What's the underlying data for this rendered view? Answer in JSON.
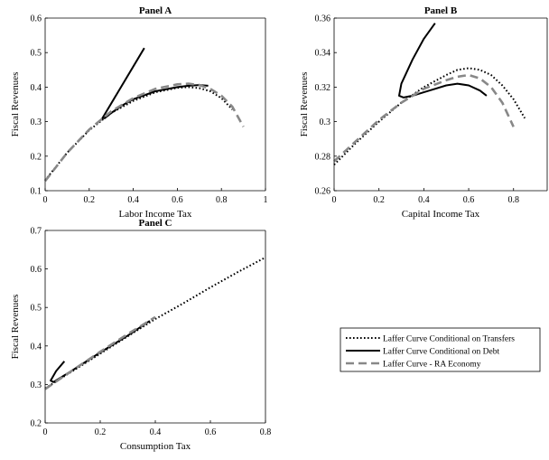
{
  "legend": {
    "items": [
      {
        "label": "Laffer Curve Conditional on Transfers",
        "style": "dotted",
        "color": "#000000"
      },
      {
        "label": "Laffer Curve Conditional on Debt",
        "style": "solid",
        "color": "#000000"
      },
      {
        "label": "Laffer Curve - RA Economy",
        "style": "dashed",
        "color": "#888888"
      }
    ]
  },
  "chart_data": [
    {
      "type": "line",
      "title": "Panel A",
      "xlabel": "Labor Income Tax",
      "ylabel": "Fiscal Revenues",
      "xlim": [
        0,
        1
      ],
      "ylim": [
        0.1,
        0.6
      ],
      "xticks": [
        0,
        0.2,
        0.4,
        0.6,
        0.8,
        1
      ],
      "xtick_labels": [
        "0",
        "0.2",
        "0.4",
        "0.6",
        "0.8",
        "1"
      ],
      "yticks": [
        0.1,
        0.2,
        0.3,
        0.4,
        0.5,
        0.6
      ],
      "ytick_labels": [
        "0.1",
        "0.2",
        "0.3",
        "0.4",
        "0.5",
        "0.6"
      ],
      "series": [
        {
          "name": "Laffer Curve Conditional on Transfers",
          "style": "dotted",
          "color": "#000000",
          "x": [
            0,
            0.1,
            0.2,
            0.3,
            0.4,
            0.5,
            0.6,
            0.65,
            0.7,
            0.75,
            0.8,
            0.85
          ],
          "y": [
            0.13,
            0.21,
            0.275,
            0.325,
            0.36,
            0.385,
            0.398,
            0.4,
            0.397,
            0.388,
            0.368,
            0.335
          ]
        },
        {
          "name": "Laffer Curve Conditional on Debt",
          "style": "solid",
          "color": "#000000",
          "x": [
            0.45,
            0.26,
            0.27,
            0.3,
            0.35,
            0.4,
            0.5,
            0.6,
            0.65,
            0.7,
            0.74
          ],
          "y": [
            0.513,
            0.31,
            0.31,
            0.325,
            0.347,
            0.365,
            0.388,
            0.4,
            0.404,
            0.406,
            0.404
          ]
        },
        {
          "name": "Laffer Curve - RA Economy",
          "style": "dashed",
          "color": "#888888",
          "x": [
            0,
            0.1,
            0.2,
            0.3,
            0.4,
            0.5,
            0.6,
            0.65,
            0.7,
            0.75,
            0.8,
            0.85,
            0.9
          ],
          "y": [
            0.128,
            0.21,
            0.277,
            0.33,
            0.368,
            0.395,
            0.408,
            0.41,
            0.406,
            0.395,
            0.375,
            0.343,
            0.285
          ]
        }
      ]
    },
    {
      "type": "line",
      "title": "Panel B",
      "xlabel": "Capital Income Tax",
      "ylabel": "Fiscal Revenues",
      "xlim": [
        0,
        0.95
      ],
      "ylim": [
        0.26,
        0.36
      ],
      "xticks": [
        0,
        0.2,
        0.4,
        0.6,
        0.8
      ],
      "xtick_labels": [
        "0",
        "0.2",
        "0.4",
        "0.6",
        "0.8"
      ],
      "yticks": [
        0.26,
        0.28,
        0.3,
        0.32,
        0.34,
        0.36
      ],
      "ytick_labels": [
        "0.26",
        "0.28",
        "0.3",
        "0.32",
        "0.34",
        "0.36"
      ],
      "series": [
        {
          "name": "Laffer Curve Conditional on Transfers",
          "style": "dotted",
          "color": "#000000",
          "x": [
            0,
            0.1,
            0.2,
            0.3,
            0.4,
            0.5,
            0.55,
            0.6,
            0.65,
            0.7,
            0.75,
            0.8,
            0.85
          ],
          "y": [
            0.275,
            0.288,
            0.3,
            0.311,
            0.32,
            0.327,
            0.33,
            0.331,
            0.33,
            0.327,
            0.321,
            0.313,
            0.302
          ]
        },
        {
          "name": "Laffer Curve Conditional on Debt",
          "style": "solid",
          "color": "#000000",
          "x": [
            0.45,
            0.4,
            0.35,
            0.3,
            0.29,
            0.31,
            0.35,
            0.4,
            0.45,
            0.5,
            0.55,
            0.6,
            0.65,
            0.68
          ],
          "y": [
            0.357,
            0.348,
            0.336,
            0.322,
            0.315,
            0.314,
            0.315,
            0.317,
            0.319,
            0.321,
            0.322,
            0.321,
            0.318,
            0.315
          ]
        },
        {
          "name": "Laffer Curve - RA Economy",
          "style": "dashed",
          "color": "#888888",
          "x": [
            0,
            0.1,
            0.2,
            0.3,
            0.4,
            0.5,
            0.55,
            0.6,
            0.65,
            0.7,
            0.75,
            0.8
          ],
          "y": [
            0.277,
            0.289,
            0.301,
            0.311,
            0.319,
            0.324,
            0.326,
            0.327,
            0.325,
            0.32,
            0.311,
            0.297
          ]
        }
      ]
    },
    {
      "type": "line",
      "title": "Panel C",
      "xlabel": "Consumption Tax",
      "ylabel": "Fiscal Revenues",
      "xlim": [
        0,
        0.8
      ],
      "ylim": [
        0.2,
        0.7
      ],
      "xticks": [
        0,
        0.2,
        0.4,
        0.6,
        0.8
      ],
      "xtick_labels": [
        "0",
        "0.2",
        "0.4",
        "0.6",
        "0.8"
      ],
      "yticks": [
        0.2,
        0.3,
        0.4,
        0.5,
        0.6,
        0.7
      ],
      "ytick_labels": [
        "0.2",
        "0.3",
        "0.4",
        "0.5",
        "0.6",
        "0.7"
      ],
      "series": [
        {
          "name": "Laffer Curve Conditional on Transfers",
          "style": "dotted",
          "color": "#000000",
          "x": [
            0,
            0.1,
            0.2,
            0.3,
            0.4,
            0.5,
            0.6,
            0.7,
            0.8
          ],
          "y": [
            0.29,
            0.335,
            0.38,
            0.425,
            0.47,
            0.51,
            0.552,
            0.592,
            0.63
          ]
        },
        {
          "name": "Laffer Curve Conditional on Debt",
          "style": "solid",
          "color": "#000000",
          "x": [
            0.07,
            0.04,
            0.02,
            0.03,
            0.1,
            0.2,
            0.3,
            0.38
          ],
          "y": [
            0.36,
            0.335,
            0.31,
            0.306,
            0.337,
            0.383,
            0.427,
            0.465
          ]
        },
        {
          "name": "Laffer Curve - RA Economy",
          "style": "dashed",
          "color": "#888888",
          "x": [
            0,
            0.1,
            0.2,
            0.3,
            0.4
          ],
          "y": [
            0.288,
            0.337,
            0.385,
            0.431,
            0.475
          ]
        }
      ]
    }
  ]
}
